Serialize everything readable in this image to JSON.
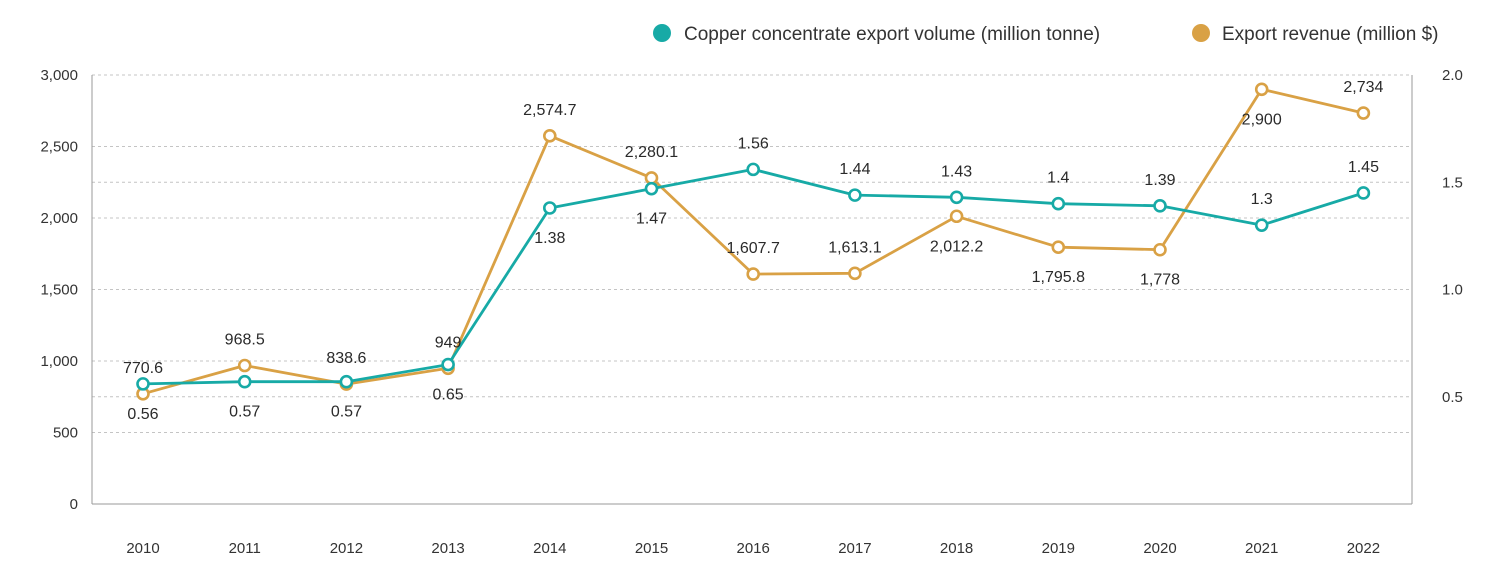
{
  "chart_data": {
    "type": "line",
    "categories": [
      "2010",
      "2011",
      "2012",
      "2013",
      "2014",
      "2015",
      "2016",
      "2017",
      "2018",
      "2019",
      "2020",
      "2021",
      "2022"
    ],
    "series": [
      {
        "name": "Copper concentrate export volume (million tonne)",
        "axis": "right",
        "color": "#17aaa6",
        "values": [
          0.56,
          0.57,
          0.57,
          0.65,
          1.38,
          1.47,
          1.56,
          1.44,
          1.43,
          1.4,
          1.39,
          1.3,
          1.45
        ],
        "labels": [
          "0.56",
          "0.57",
          "0.57",
          "0.65",
          "1.38",
          "1.47",
          "1.56",
          "1.44",
          "1.43",
          "1.4",
          "1.39",
          "1.3",
          "1.45"
        ]
      },
      {
        "name": "Export revenue (million $)",
        "axis": "left",
        "color": "#d9a145",
        "values": [
          770.6,
          968.5,
          838.6,
          949,
          2574.7,
          2280.1,
          1607.7,
          1613.1,
          2012.2,
          1795.8,
          1778,
          2900,
          2734
        ],
        "labels": [
          "770.6",
          "968.5",
          "838.6",
          "949",
          "2,574.7",
          "2,280.1",
          "1,607.7",
          "1,613.1",
          "2,012.2",
          "1,795.8",
          "1,778",
          "2,900",
          "2,734"
        ]
      }
    ],
    "left_axis": {
      "ylim": [
        0,
        3000
      ],
      "ticks": [
        0,
        500,
        1000,
        1500,
        2000,
        2500,
        3000
      ],
      "tick_labels": [
        "0",
        "500",
        "1,000",
        "1,500",
        "2,000",
        "2,500",
        "3,000"
      ]
    },
    "right_axis": {
      "ylim": [
        0,
        2.0
      ],
      "ticks": [
        0.5,
        1.0,
        1.5,
        2.0
      ],
      "tick_labels": [
        "0.5",
        "1.0",
        "1.5",
        "2.0"
      ]
    },
    "grid": true,
    "legend_position": "top-right",
    "title": "",
    "xlabel": "",
    "ylabel": ""
  }
}
